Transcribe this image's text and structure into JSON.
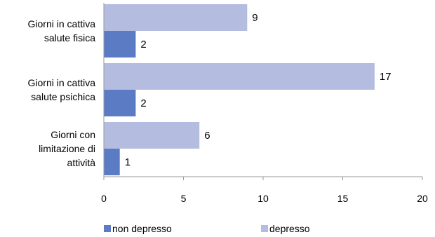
{
  "chart_data": {
    "type": "bar",
    "orientation": "horizontal",
    "categories": [
      [
        "Giorni in cattiva",
        "salute fisica"
      ],
      [
        "Giorni in cattiva",
        "salute psichica"
      ],
      [
        "Giorni con",
        "limitazione di",
        "attività"
      ]
    ],
    "series": [
      {
        "name": "non depresso",
        "values": [
          2,
          2,
          1
        ],
        "color": "#5b7cc4"
      },
      {
        "name": "depresso",
        "values": [
          9,
          17,
          6
        ],
        "color": "#b4bde0"
      }
    ],
    "xlim": [
      0,
      20
    ],
    "xticks": [
      "0",
      "5",
      "10",
      "15",
      "20"
    ],
    "xlabel": "",
    "ylabel": "",
    "grid": false,
    "legend_position": "bottom"
  }
}
